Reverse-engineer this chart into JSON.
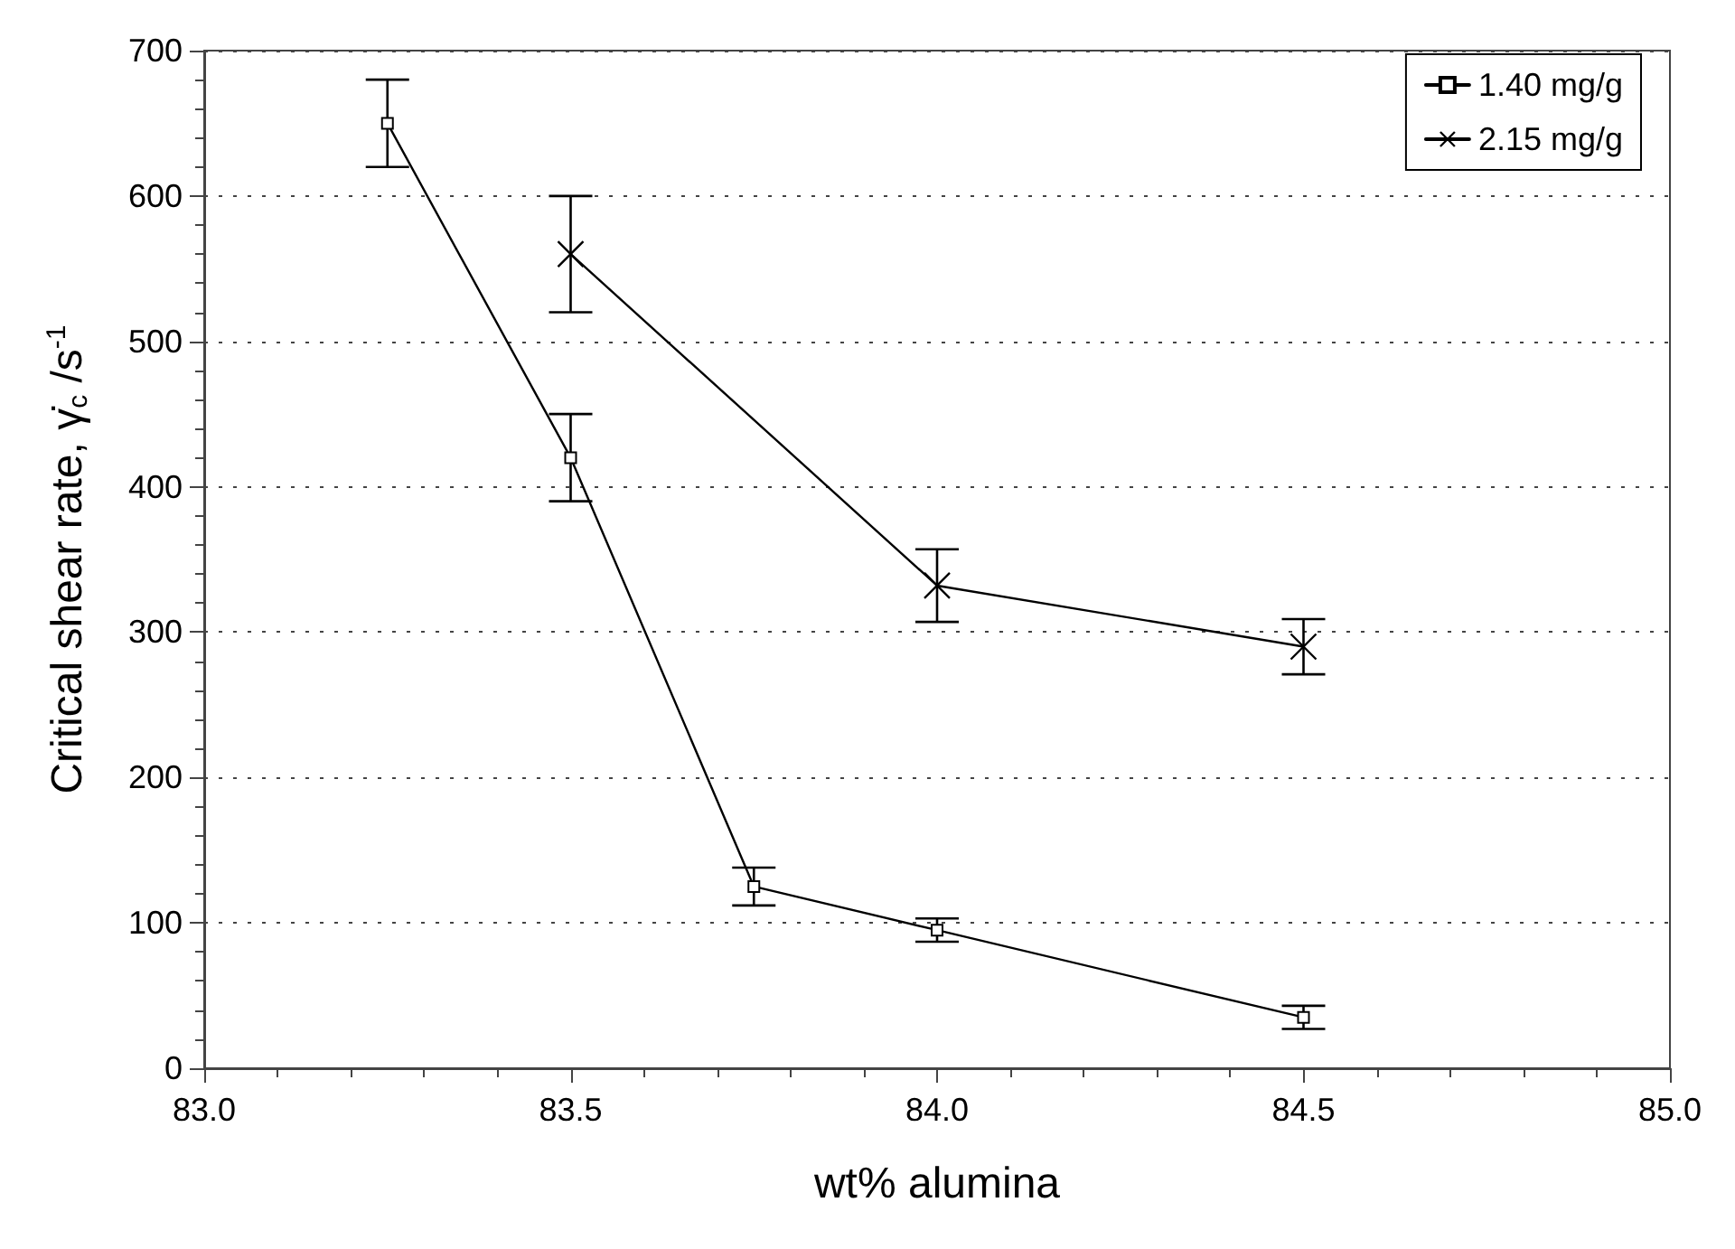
{
  "chart_data": {
    "type": "line",
    "xlabel": "wt% alumina",
    "ylabel": "Critical shear rate, γ̇$_{c}$ /s$^{-1}$",
    "xlim": [
      83.0,
      85.0
    ],
    "xticks": [
      {
        "value": 83.0,
        "label": "83.0"
      },
      {
        "value": 83.5,
        "label": "83.5"
      },
      {
        "value": 84.0,
        "label": "84.0"
      },
      {
        "value": 84.5,
        "label": "84.5"
      },
      {
        "value": 85.0,
        "label": "85.0"
      }
    ],
    "ylim": [
      0,
      700
    ],
    "yticks": [
      0,
      100,
      200,
      300,
      400,
      500,
      600,
      700
    ],
    "grid": "y",
    "legend": "top right",
    "line_style": "solid",
    "series": [
      {
        "name": "1.40 mg/g",
        "color": "#000000",
        "marker": "square",
        "x": [
          83.25,
          83.5,
          83.75,
          84.0,
          84.5
        ],
        "values": [
          650,
          420,
          125,
          95,
          35
        ],
        "errors": [
          30,
          30,
          13,
          8,
          8
        ]
      },
      {
        "name": "2.15 mg/g",
        "color": "#000000",
        "marker": "cross",
        "x": [
          83.5,
          84.0,
          84.5
        ],
        "values": [
          560,
          332,
          290
        ],
        "errors": [
          40,
          25,
          19
        ]
      }
    ]
  }
}
